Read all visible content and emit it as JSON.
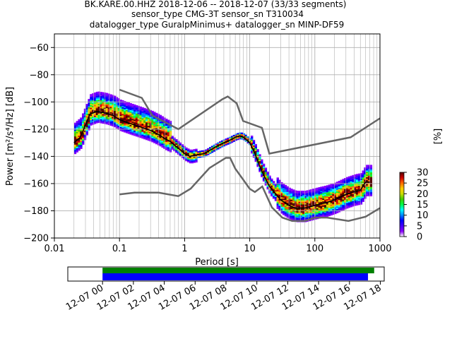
{
  "chart_data": {
    "type": "heatmap",
    "title": [
      "BK.KARE.00.HHZ   2018-12-06 -- 2018-12-07  (33/33 segments)",
      "sensor_type CMG-3T sensor_sn T310034",
      "datalogger_type GuralpMinimus+ datalogger_sn MINP-DF59"
    ],
    "xlabel": "Period [s]",
    "ylabel": "Power [m²/s⁴/Hz] [dB]",
    "xscale": "log",
    "xlim": [
      0.01,
      1000
    ],
    "ylim": [
      -200,
      -50
    ],
    "xticks": [
      0.01,
      0.1,
      1,
      10,
      100,
      1000
    ],
    "xtick_labels": [
      "0.01",
      "0.1",
      "1",
      "10",
      "100",
      "1000"
    ],
    "yticks": [
      -200,
      -180,
      -160,
      -140,
      -120,
      -100,
      -80,
      -60
    ],
    "ytick_labels": [
      "−200",
      "−180",
      "−160",
      "−140",
      "−120",
      "−100",
      "−80",
      "−60"
    ],
    "grid": true,
    "colorbar": {
      "label": "[%]",
      "range": [
        0,
        30
      ],
      "ticks": [
        0,
        5,
        10,
        15,
        20,
        25,
        30
      ],
      "tick_labels": [
        "0",
        "5",
        "10",
        "15",
        "20",
        "25",
        "30"
      ]
    },
    "noise_model_high": {
      "name": "NHNM",
      "x": [
        0.1,
        0.22,
        0.32,
        0.8,
        3.8,
        4.6,
        6.3,
        7.9,
        15.4,
        20,
        354.8,
        1000
      ],
      "y": [
        -91,
        -97,
        -110,
        -120,
        -98,
        -96,
        -101,
        -114,
        -119,
        -138,
        -126,
        -112
      ]
    },
    "noise_model_low": {
      "name": "NLNM",
      "x": [
        0.1,
        0.17,
        0.4,
        0.8,
        1.24,
        2.4,
        4.3,
        5,
        6,
        10,
        12,
        15.6,
        21.9,
        31.6,
        45,
        70,
        101,
        154,
        328,
        600,
        1000
      ],
      "y": [
        -168,
        -166.7,
        -166.7,
        -169.2,
        -163.7,
        -148.6,
        -141.1,
        -141.1,
        -149,
        -163.8,
        -166.2,
        -162.1,
        -177.5,
        -185,
        -187.5,
        -187.5,
        -185,
        -185,
        -187.5,
        -184.4,
        -178
      ]
    },
    "median_psd": {
      "x": [
        0.02,
        0.025,
        0.03,
        0.035,
        0.045,
        0.06,
        0.08,
        0.1,
        0.15,
        0.2,
        0.3,
        0.4,
        0.5,
        0.6,
        0.8,
        1.0,
        1.2,
        1.5,
        2,
        3,
        4,
        5,
        6,
        7,
        8,
        10,
        12,
        15,
        20,
        30,
        40,
        50,
        70,
        100,
        150,
        200,
        300,
        400,
        500,
        600,
        700
      ],
      "y": [
        -130,
        -126,
        -117,
        -109,
        -107,
        -108,
        -110,
        -113,
        -116,
        -118,
        -121,
        -124,
        -127,
        -129,
        -134,
        -138,
        -140,
        -139,
        -138,
        -133,
        -130,
        -128,
        -126,
        -125,
        -126,
        -130,
        -138,
        -150,
        -162,
        -172,
        -176,
        -178,
        -178,
        -176,
        -174,
        -172,
        -168,
        -166,
        -165,
        -159,
        -159
      ]
    },
    "date_axis": {
      "tick_labels": [
        "12-07 00",
        "12-07 02",
        "12-07 04",
        "12-07 06",
        "12-07 08",
        "12-07 10",
        "12-07 12",
        "12-07 14",
        "12-07 16",
        "12-07 18"
      ],
      "range_hours": [
        -2.25,
        18.25
      ],
      "data_coverage_hours": [
        0,
        17.6
      ],
      "processed_coverage_hours": [
        0,
        17.2
      ],
      "data_color": "#008000",
      "processed_color": "#0000ff"
    }
  },
  "colors": {
    "noise_model": "#666666",
    "median": "#000000",
    "grid": "#b0b0b0",
    "cmap": [
      "#ffffff",
      "#8800ff",
      "#4400ff",
      "#0000ff",
      "#0088ff",
      "#00ffff",
      "#00ff44",
      "#44cc00",
      "#ccdd00",
      "#ffcc00",
      "#ff6600",
      "#cc0000",
      "#550000"
    ]
  }
}
